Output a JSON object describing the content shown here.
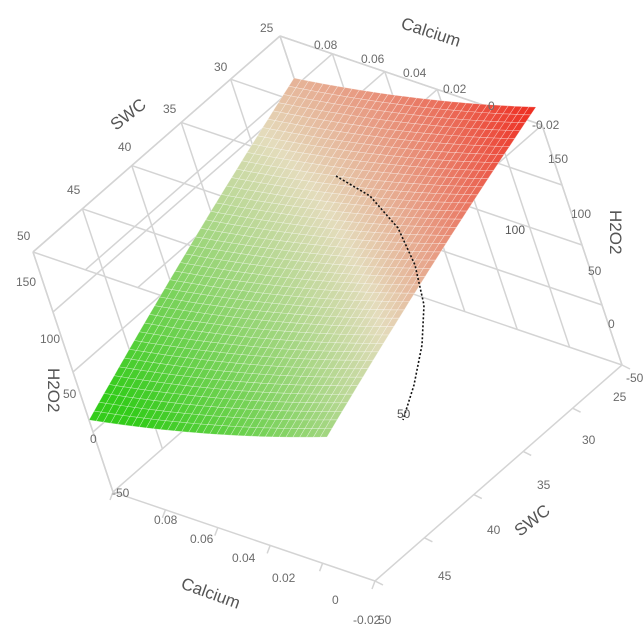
{
  "chart_data": {
    "type": "surface",
    "x_axis": {
      "label": "Calcium",
      "range": [
        -0.02,
        0.08
      ],
      "ticks": [
        "0.08",
        "0.06",
        "0.04",
        "0.02",
        "0",
        "-0.02"
      ]
    },
    "y_axis": {
      "label": "SWC",
      "range": [
        25,
        50
      ],
      "ticks": [
        "25",
        "30",
        "35",
        "40",
        "45",
        "50"
      ]
    },
    "z_axis": {
      "label": "H2O2",
      "range": [
        -50,
        150
      ],
      "ticks": [
        "150",
        "100",
        "50",
        "0",
        "-50"
      ]
    },
    "top_face_z_ticks": [
      "150",
      "100"
    ],
    "surface": {
      "description_values": {
        "corner_calcium_0.08_swc_25": 115,
        "corner_calcium_-0.02_swc_25": 165,
        "corner_calcium_0.08_swc_50": 10,
        "corner_calcium_-0.02_swc_50": 70
      },
      "color_low": "#33cc1a",
      "color_mid": "#e4dcbc",
      "color_high": "#ee2a1e"
    },
    "contours": [
      {
        "level": "100",
        "label": "100"
      },
      {
        "level": "50",
        "label": "50"
      }
    ],
    "grid": true
  }
}
